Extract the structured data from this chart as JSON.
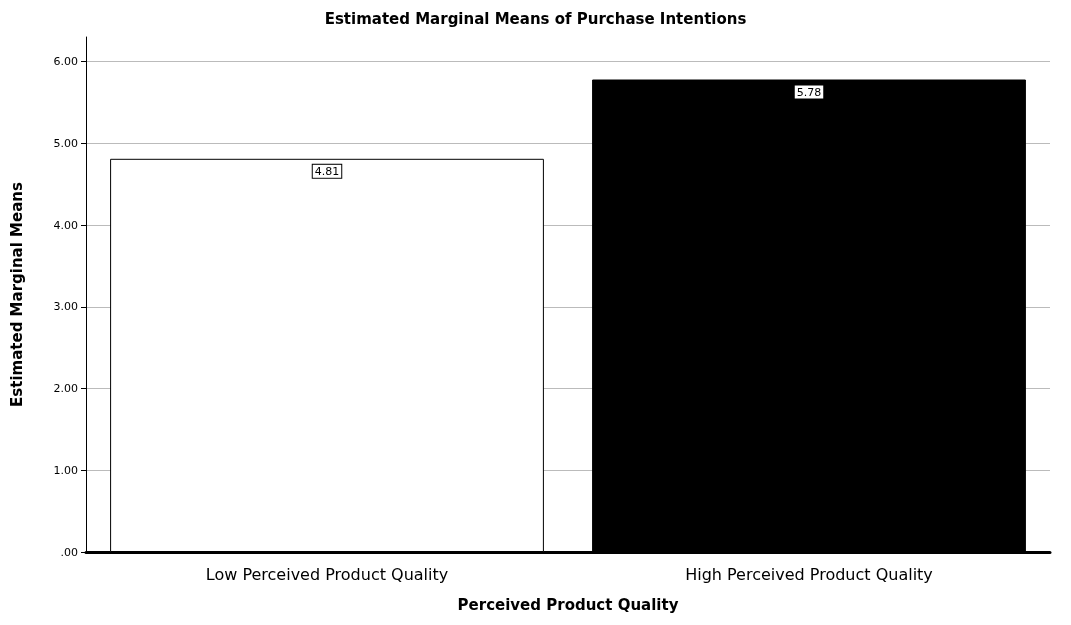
{
  "chart_data": {
    "type": "bar",
    "title": "Estimated Marginal Means of Purchase Intentions",
    "xlabel": "Perceived Product Quality",
    "ylabel": "Estimated Marginal Means",
    "categories": [
      "Low Perceived Product Quality",
      "High Perceived Product Quality"
    ],
    "values": [
      4.81,
      5.78
    ],
    "colors": [
      "#ffffff",
      "#000000"
    ],
    "ylim": [
      0,
      6.3
    ],
    "yticks": [
      {
        "value": 0,
        "label": ".00"
      },
      {
        "value": 1,
        "label": "1.00"
      },
      {
        "value": 2,
        "label": "2.00"
      },
      {
        "value": 3,
        "label": "3.00"
      },
      {
        "value": 4,
        "label": "4.00"
      },
      {
        "value": 5,
        "label": "5.00"
      },
      {
        "value": 6,
        "label": "6.00"
      }
    ],
    "grid": "y",
    "data_labels": true
  }
}
